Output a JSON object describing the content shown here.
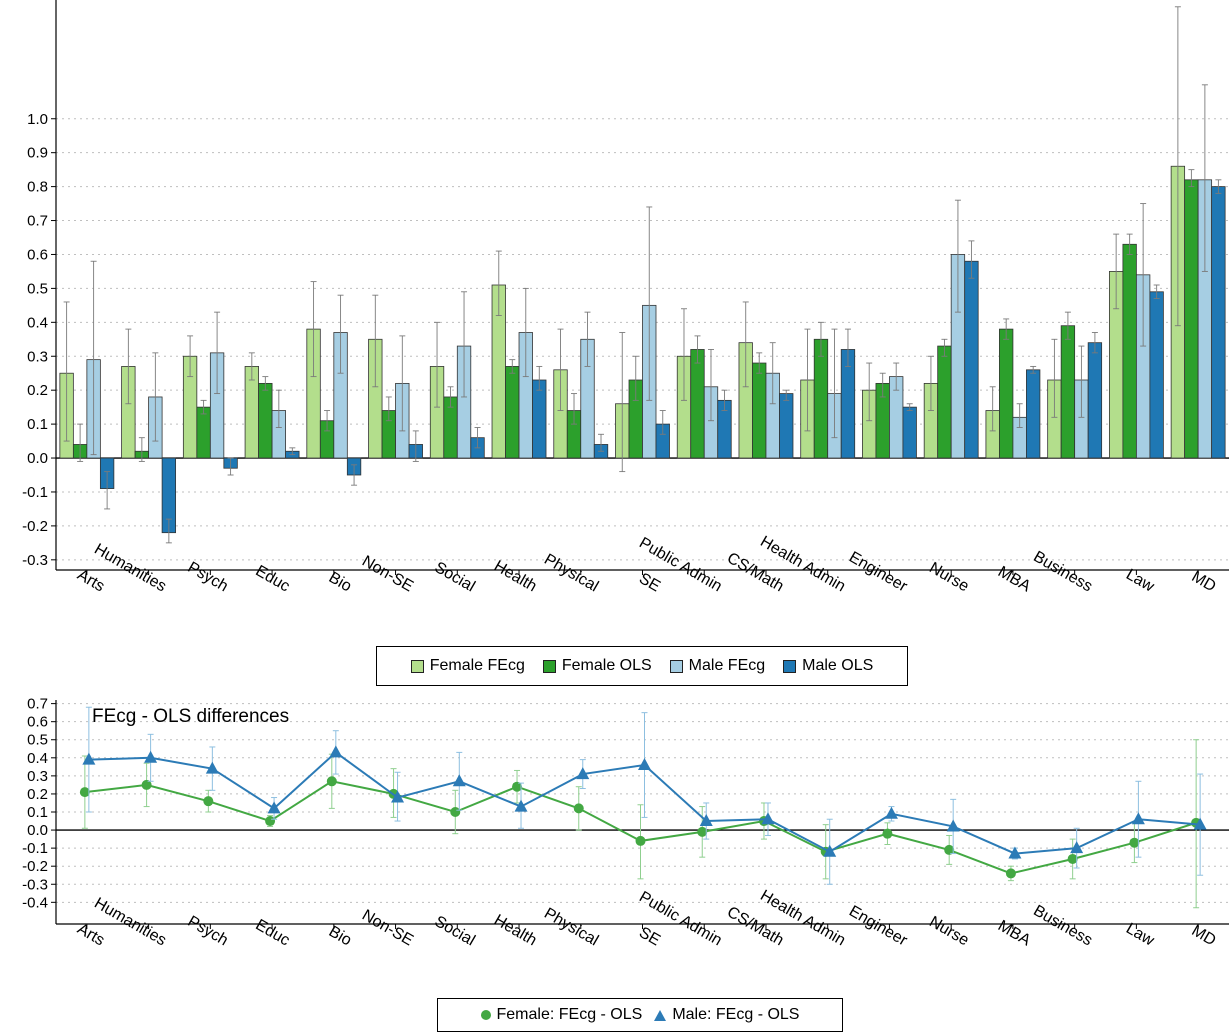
{
  "colors": {
    "female_fecg": "#b3de8c",
    "female_ols": "#2ca02c",
    "male_fecg": "#a6cee3",
    "male_ols": "#1f78b4",
    "female_line": "#43a843",
    "male_line": "#2c7bb6"
  },
  "chart_data": [
    {
      "type": "bar",
      "categories": [
        "Arts",
        "Humanities",
        "Psych",
        "Educ",
        "Bio",
        "Non-SE",
        "Social",
        "Health",
        "Physical",
        "SE",
        "Public Admin",
        "CS/Math",
        "Health Admin",
        "Engineer",
        "Nurse",
        "MBA",
        "Business",
        "Law",
        "MD"
      ],
      "ylim": [
        -0.33,
        1.35
      ],
      "yticks": [
        -0.3,
        -0.2,
        -0.1,
        0.0,
        0.1,
        0.2,
        0.3,
        0.4,
        0.5,
        0.6,
        0.7,
        0.8,
        0.9,
        1.0
      ],
      "ytick_labels": [
        "-0.3",
        "-0.2",
        "-0.1",
        "0.0",
        "0.1",
        "0.2",
        "0.3",
        "0.4",
        "0.5",
        "0.6",
        "0.7",
        "0.8",
        "0.9",
        "1.0"
      ],
      "grid": true,
      "legend_position": "bottom",
      "series": [
        {
          "name": "Female FEcg",
          "values": [
            0.25,
            0.27,
            0.3,
            0.27,
            0.38,
            0.35,
            0.27,
            0.51,
            0.26,
            0.16,
            0.3,
            0.34,
            0.23,
            0.2,
            0.22,
            0.14,
            0.23,
            0.55,
            0.86
          ],
          "err_low": [
            0.05,
            0.16,
            0.24,
            0.23,
            0.24,
            0.21,
            0.15,
            0.42,
            0.14,
            -0.04,
            0.17,
            0.21,
            0.08,
            0.11,
            0.14,
            0.08,
            0.12,
            0.44,
            0.39
          ],
          "err_high": [
            0.46,
            0.38,
            0.36,
            0.31,
            0.52,
            0.48,
            0.4,
            0.61,
            0.38,
            0.37,
            0.44,
            0.46,
            0.38,
            0.28,
            0.3,
            0.21,
            0.35,
            0.66,
            1.33
          ]
        },
        {
          "name": "Female OLS",
          "values": [
            0.04,
            0.02,
            0.15,
            0.22,
            0.11,
            0.14,
            0.18,
            0.27,
            0.14,
            0.23,
            0.32,
            0.28,
            0.35,
            0.22,
            0.33,
            0.38,
            0.39,
            0.63,
            0.82
          ],
          "err_low": [
            -0.01,
            -0.01,
            0.13,
            0.2,
            0.08,
            0.11,
            0.15,
            0.25,
            0.1,
            0.17,
            0.28,
            0.25,
            0.3,
            0.18,
            0.3,
            0.35,
            0.35,
            0.6,
            0.8
          ],
          "err_high": [
            0.1,
            0.06,
            0.17,
            0.24,
            0.14,
            0.18,
            0.21,
            0.29,
            0.19,
            0.3,
            0.36,
            0.31,
            0.4,
            0.25,
            0.35,
            0.41,
            0.43,
            0.66,
            0.85
          ]
        },
        {
          "name": "Male FEcg",
          "values": [
            0.29,
            0.18,
            0.31,
            0.14,
            0.37,
            0.22,
            0.33,
            0.37,
            0.35,
            0.45,
            0.21,
            0.25,
            0.19,
            0.24,
            0.6,
            0.12,
            0.23,
            0.54,
            0.82
          ],
          "err_low": [
            0.01,
            0.05,
            0.19,
            0.09,
            0.25,
            0.08,
            0.18,
            0.24,
            0.27,
            0.17,
            0.11,
            0.16,
            0.06,
            0.2,
            0.43,
            0.09,
            0.12,
            0.33,
            0.55
          ],
          "err_high": [
            0.58,
            0.31,
            0.43,
            0.2,
            0.48,
            0.36,
            0.49,
            0.5,
            0.43,
            0.74,
            0.32,
            0.34,
            0.38,
            0.28,
            0.76,
            0.16,
            0.33,
            0.75,
            1.1
          ]
        },
        {
          "name": "Male OLS",
          "values": [
            -0.09,
            -0.22,
            -0.03,
            0.02,
            -0.05,
            0.04,
            0.06,
            0.23,
            0.04,
            0.1,
            0.17,
            0.19,
            0.32,
            0.15,
            0.58,
            0.26,
            0.34,
            0.49,
            0.8
          ],
          "err_low": [
            -0.15,
            -0.25,
            -0.05,
            0.01,
            -0.08,
            -0.01,
            0.03,
            0.2,
            0.02,
            0.07,
            0.14,
            0.17,
            0.27,
            0.14,
            0.53,
            0.25,
            0.31,
            0.47,
            0.78
          ],
          "err_high": [
            -0.04,
            -0.18,
            0.0,
            0.03,
            -0.02,
            0.08,
            0.09,
            0.27,
            0.07,
            0.14,
            0.2,
            0.2,
            0.38,
            0.16,
            0.64,
            0.27,
            0.37,
            0.51,
            0.82
          ]
        }
      ]
    },
    {
      "type": "line",
      "title": "FEcg - OLS differences",
      "categories": [
        "Arts",
        "Humanities",
        "Psych",
        "Educ",
        "Bio",
        "Non-SE",
        "Social",
        "Health",
        "Physical",
        "SE",
        "Public Admin",
        "CS/Math",
        "Health Admin",
        "Engineer",
        "Nurse",
        "MBA",
        "Business",
        "Law",
        "MD"
      ],
      "ylim": [
        -0.52,
        0.72
      ],
      "yticks": [
        -0.4,
        -0.3,
        -0.2,
        -0.1,
        0.0,
        0.1,
        0.2,
        0.3,
        0.4,
        0.5,
        0.6,
        0.7
      ],
      "ytick_labels": [
        "-0.4",
        "-0.3",
        "-0.2",
        "-0.1",
        "0.0",
        "0.1",
        "0.2",
        "0.3",
        "0.4",
        "0.5",
        "0.6",
        "0.7"
      ],
      "grid": true,
      "legend_position": "bottom",
      "series": [
        {
          "name": "Female: FEcg - OLS",
          "marker": "circle",
          "values": [
            0.21,
            0.25,
            0.16,
            0.05,
            0.27,
            0.2,
            0.1,
            0.24,
            0.12,
            -0.06,
            -0.01,
            0.05,
            -0.12,
            -0.02,
            -0.11,
            -0.24,
            -0.16,
            -0.07,
            0.04
          ],
          "err_low": [
            0.01,
            0.13,
            0.1,
            0.02,
            0.12,
            0.07,
            -0.02,
            0.15,
            0.0,
            -0.27,
            -0.15,
            -0.05,
            -0.27,
            -0.08,
            -0.19,
            -0.28,
            -0.27,
            -0.18,
            -0.43
          ],
          "err_high": [
            0.41,
            0.37,
            0.22,
            0.08,
            0.42,
            0.34,
            0.22,
            0.33,
            0.24,
            0.14,
            0.13,
            0.15,
            0.03,
            0.04,
            -0.03,
            -0.2,
            -0.05,
            0.04,
            0.5
          ]
        },
        {
          "name": "Male: FEcg - OLS",
          "marker": "triangle",
          "values": [
            0.39,
            0.4,
            0.34,
            0.12,
            0.43,
            0.18,
            0.27,
            0.13,
            0.31,
            0.36,
            0.05,
            0.06,
            -0.12,
            0.09,
            0.02,
            -0.13,
            -0.1,
            0.06,
            0.03
          ],
          "err_low": [
            0.1,
            0.27,
            0.22,
            0.06,
            0.31,
            0.05,
            0.11,
            0.01,
            0.23,
            0.07,
            -0.05,
            -0.03,
            -0.3,
            0.05,
            -0.13,
            -0.16,
            -0.21,
            -0.15,
            -0.25
          ],
          "err_high": [
            0.68,
            0.53,
            0.46,
            0.18,
            0.55,
            0.32,
            0.43,
            0.26,
            0.39,
            0.65,
            0.15,
            0.15,
            0.06,
            0.13,
            0.17,
            -0.1,
            0.01,
            0.27,
            0.31
          ]
        }
      ]
    }
  ]
}
